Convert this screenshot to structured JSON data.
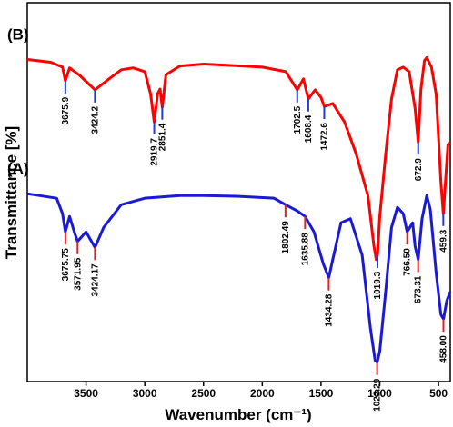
{
  "chart_data": {
    "type": "line",
    "x_label": "Wavenumber (cm⁻¹)",
    "y_label": "Transmittance [%]",
    "xlim": [
      4000,
      400
    ],
    "ylim": [
      0,
      100
    ],
    "xticks": [
      3500,
      3000,
      2500,
      2000,
      1500,
      1000,
      500
    ],
    "series": [
      {
        "name": "(B)",
        "color": "#ff0000",
        "peak_color": "#1f3ad6",
        "x": [
          4000,
          3800,
          3700,
          3676,
          3640,
          3550,
          3424,
          3300,
          3200,
          3100,
          3000,
          2950,
          2920,
          2890,
          2870,
          2851,
          2820,
          2700,
          2500,
          2300,
          2000,
          1800,
          1702,
          1650,
          1608,
          1550,
          1500,
          1472,
          1400,
          1300,
          1200,
          1100,
          1050,
          1030,
          1019,
          1000,
          950,
          900,
          850,
          800,
          750,
          700,
          673,
          650,
          620,
          600,
          560,
          520,
          480,
          459,
          420,
          400
        ],
        "values": [
          85,
          84.3,
          83,
          79.4,
          82.8,
          80.7,
          77,
          80,
          82.3,
          82.8,
          81.8,
          75.8,
          68.5,
          76,
          77.2,
          72.4,
          81,
          83.3,
          83.8,
          83.5,
          83,
          81.8,
          77,
          79.9,
          74.6,
          77,
          75,
          72.6,
          73.4,
          68.5,
          60,
          49,
          35.8,
          32.2,
          33.4,
          43.6,
          60,
          74.6,
          82.3,
          83,
          81.8,
          72.2,
          63.2,
          77,
          84.7,
          85.5,
          83,
          75.8,
          52.8,
          44.3,
          62.5,
          63
        ],
        "peaks": [
          {
            "x": 3675.9,
            "label": "3675.9"
          },
          {
            "x": 3424.2,
            "label": "3424.2"
          },
          {
            "x": 2919.7,
            "label": "2919.7"
          },
          {
            "x": 2851.4,
            "label": "2851.4"
          },
          {
            "x": 1702.5,
            "label": "1702.5"
          },
          {
            "x": 1608.4,
            "label": "1608.4"
          },
          {
            "x": 1472.6,
            "label": "1472.6"
          },
          {
            "x": 1019.3,
            "label": "1019.3"
          },
          {
            "x": 672.9,
            "label": "672.9"
          },
          {
            "x": 459.3,
            "label": "459.3"
          }
        ]
      },
      {
        "name": "(A)",
        "color": "#1a1ad6",
        "peak_color": "#e02020",
        "x": [
          4000,
          3750,
          3700,
          3676,
          3640,
          3600,
          3572,
          3500,
          3424,
          3350,
          3200,
          3000,
          2700,
          2500,
          2200,
          1900,
          1802,
          1700,
          1636,
          1560,
          1480,
          1434,
          1400,
          1330,
          1250,
          1150,
          1080,
          1040,
          1022,
          1000,
          950,
          900,
          850,
          800,
          767,
          720,
          700,
          673,
          640,
          600,
          570,
          520,
          480,
          458,
          430,
          400
        ],
        "values": [
          49.6,
          48.4,
          44.3,
          39.5,
          43.6,
          39.5,
          37,
          39.5,
          35.4,
          40.7,
          46.7,
          48.4,
          49.1,
          49.1,
          48.9,
          48.4,
          46.7,
          45,
          43.6,
          39.5,
          31,
          27.4,
          32.2,
          41.9,
          43,
          33.4,
          14.2,
          5.6,
          5.1,
          8,
          23.7,
          40.7,
          46,
          44.3,
          39.5,
          41.9,
          35.8,
          32.2,
          43,
          49.1,
          45.5,
          28.6,
          17.7,
          16.5,
          21.3,
          23.7
        ],
        "peaks": [
          {
            "x": 3675.75,
            "label": "3675.75"
          },
          {
            "x": 3571.95,
            "label": "3571.95"
          },
          {
            "x": 3424.17,
            "label": "3424.17"
          },
          {
            "x": 1802.49,
            "label": "1802.49"
          },
          {
            "x": 1635.88,
            "label": "1635.88"
          },
          {
            "x": 1434.28,
            "label": "1434.28"
          },
          {
            "x": 1022.29,
            "label": "1022.29"
          },
          {
            "x": 766.5,
            "label": "766.50"
          },
          {
            "x": 673.31,
            "label": "673.31"
          },
          {
            "x": 458.0,
            "label": "458.00"
          }
        ]
      }
    ]
  }
}
